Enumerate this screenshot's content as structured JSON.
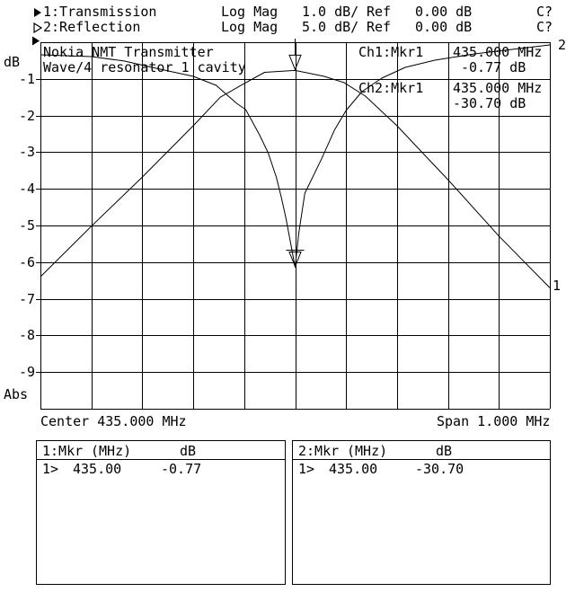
{
  "header": {
    "rows": [
      {
        "marker_icon": "filled-right-triangle",
        "channel": "1:Transmission",
        "format": "Log Mag",
        "scale": "1.0 dB/",
        "ref_label": "Ref",
        "ref_value": "0.00 dB",
        "status": "C?"
      },
      {
        "marker_icon": "hollow-right-triangle",
        "channel": "2:Reflection",
        "format": "Log Mag",
        "scale": "5.0 dB/",
        "ref_label": "Ref",
        "ref_value": "0.00 dB",
        "status": "C?"
      }
    ]
  },
  "plot": {
    "y_unit": "dB",
    "y_ticks": [
      "-1",
      "-2",
      "-3",
      "-4",
      "-5",
      "-6",
      "-7",
      "-8",
      "-9"
    ],
    "y_bottom_label": "Abs",
    "title_line1": "Nokia NMT Transmitter",
    "title_line2": "Wave/4 resonator 1 cavity",
    "readouts": [
      {
        "label": "Ch1:Mkr1",
        "freq": "435.000 MHz",
        "value": "-0.77 dB"
      },
      {
        "label": "Ch2:Mkr1",
        "freq": "435.000 MHz",
        "value": "-30.70 dB"
      }
    ],
    "trace1_label": "1",
    "trace2_label": "2",
    "center_label": "Center 435.000 MHz",
    "span_label": "Span 1.000 MHz"
  },
  "marker_tables": [
    {
      "title": "1:Mkr",
      "freq_unit": "(MHz)",
      "value_unit": "dB",
      "row": {
        "num": "1>",
        "freq": "435.00",
        "value": "-0.77"
      }
    },
    {
      "title": "2:Mkr",
      "freq_unit": "(MHz)",
      "value_unit": "dB",
      "row": {
        "num": "1>",
        "freq": "435.00",
        "value": "-30.70"
      }
    }
  ],
  "colors": {
    "foreground": "#000000",
    "background": "#ffffff"
  },
  "chart_data": {
    "type": "line",
    "title": "Nokia NMT Transmitter Wave/4 resonator 1 cavity",
    "x_axis": {
      "center_mhz": 435.0,
      "span_mhz": 1.0,
      "min_mhz": 434.5,
      "max_mhz": 435.5,
      "divisions": 10
    },
    "y_axis": {
      "divisions": 10,
      "grid": true,
      "top_db": 0.0
    },
    "legend_position": "top-header",
    "series": [
      {
        "name": "1:Transmission",
        "format": "Log Mag",
        "db_per_div": 1.0,
        "ref_db": 0.0,
        "marker": {
          "name": "Mkr1",
          "freq_mhz": 435.0,
          "value_db": -0.77,
          "style": "triangle-stem"
        },
        "points_mhz_db": [
          [
            434.5,
            -6.4
          ],
          [
            434.6,
            -5.02
          ],
          [
            434.7,
            -3.68
          ],
          [
            434.8,
            -2.28
          ],
          [
            434.853,
            -1.5
          ],
          [
            434.897,
            -1.15
          ],
          [
            434.94,
            -0.82
          ],
          [
            435.0,
            -0.77
          ],
          [
            435.056,
            -0.93
          ],
          [
            435.096,
            -1.1
          ],
          [
            435.138,
            -1.47
          ],
          [
            435.2,
            -2.28
          ],
          [
            435.255,
            -3.09
          ],
          [
            435.3,
            -3.75
          ],
          [
            435.4,
            -5.29
          ],
          [
            435.5,
            -6.7
          ]
        ]
      },
      {
        "name": "2:Reflection",
        "format": "Log Mag",
        "db_per_div": 5.0,
        "ref_db": 0.0,
        "marker": {
          "name": "Mkr1",
          "freq_mhz": 435.0,
          "value_db": -30.7,
          "style": "triangle-crossbar"
        },
        "points_mhz_db": [
          [
            434.5,
            -1.72
          ],
          [
            434.6,
            -1.96
          ],
          [
            434.665,
            -2.57
          ],
          [
            434.735,
            -3.68
          ],
          [
            434.8,
            -4.66
          ],
          [
            434.845,
            -5.88
          ],
          [
            434.885,
            -8.33
          ],
          [
            434.903,
            -9.19
          ],
          [
            434.93,
            -12.62
          ],
          [
            434.947,
            -15.07
          ],
          [
            434.963,
            -18.38
          ],
          [
            434.973,
            -21.2
          ],
          [
            434.982,
            -24.02
          ],
          [
            434.99,
            -26.96
          ],
          [
            435.0,
            -30.7
          ],
          [
            435.007,
            -26.1
          ],
          [
            435.019,
            -20.6
          ],
          [
            435.052,
            -15.9
          ],
          [
            435.077,
            -12.0
          ],
          [
            435.1,
            -9.31
          ],
          [
            435.131,
            -6.74
          ],
          [
            435.17,
            -4.9
          ],
          [
            435.216,
            -3.43
          ],
          [
            435.274,
            -2.45
          ],
          [
            435.352,
            -1.59
          ],
          [
            435.5,
            -0.37
          ]
        ]
      }
    ]
  }
}
